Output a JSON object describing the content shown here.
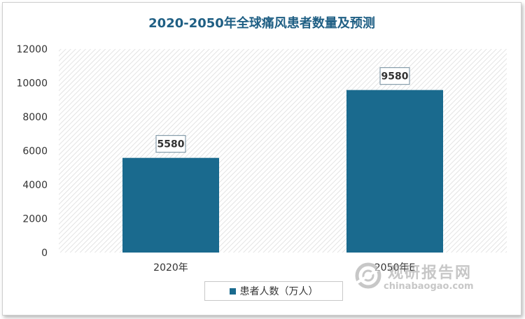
{
  "chart_data": {
    "type": "bar",
    "title": "2020-2050年全球痛风患者数量及预测",
    "categories": [
      "2020年",
      "2050年E"
    ],
    "series": [
      {
        "name": "患者人数（万人）",
        "values": [
          5580,
          9580
        ]
      }
    ],
    "ylim": [
      0,
      12000
    ],
    "yticks": [
      0,
      2000,
      4000,
      6000,
      8000,
      10000,
      12000
    ],
    "grid": false,
    "legend": "bottom-center",
    "colors": {
      "bar": "#1a6a8e",
      "title": "#1f5f84",
      "label_border": "#6f8a9b"
    }
  },
  "watermark": {
    "cn": "观研报告网",
    "en": "chinabaogao.com"
  }
}
